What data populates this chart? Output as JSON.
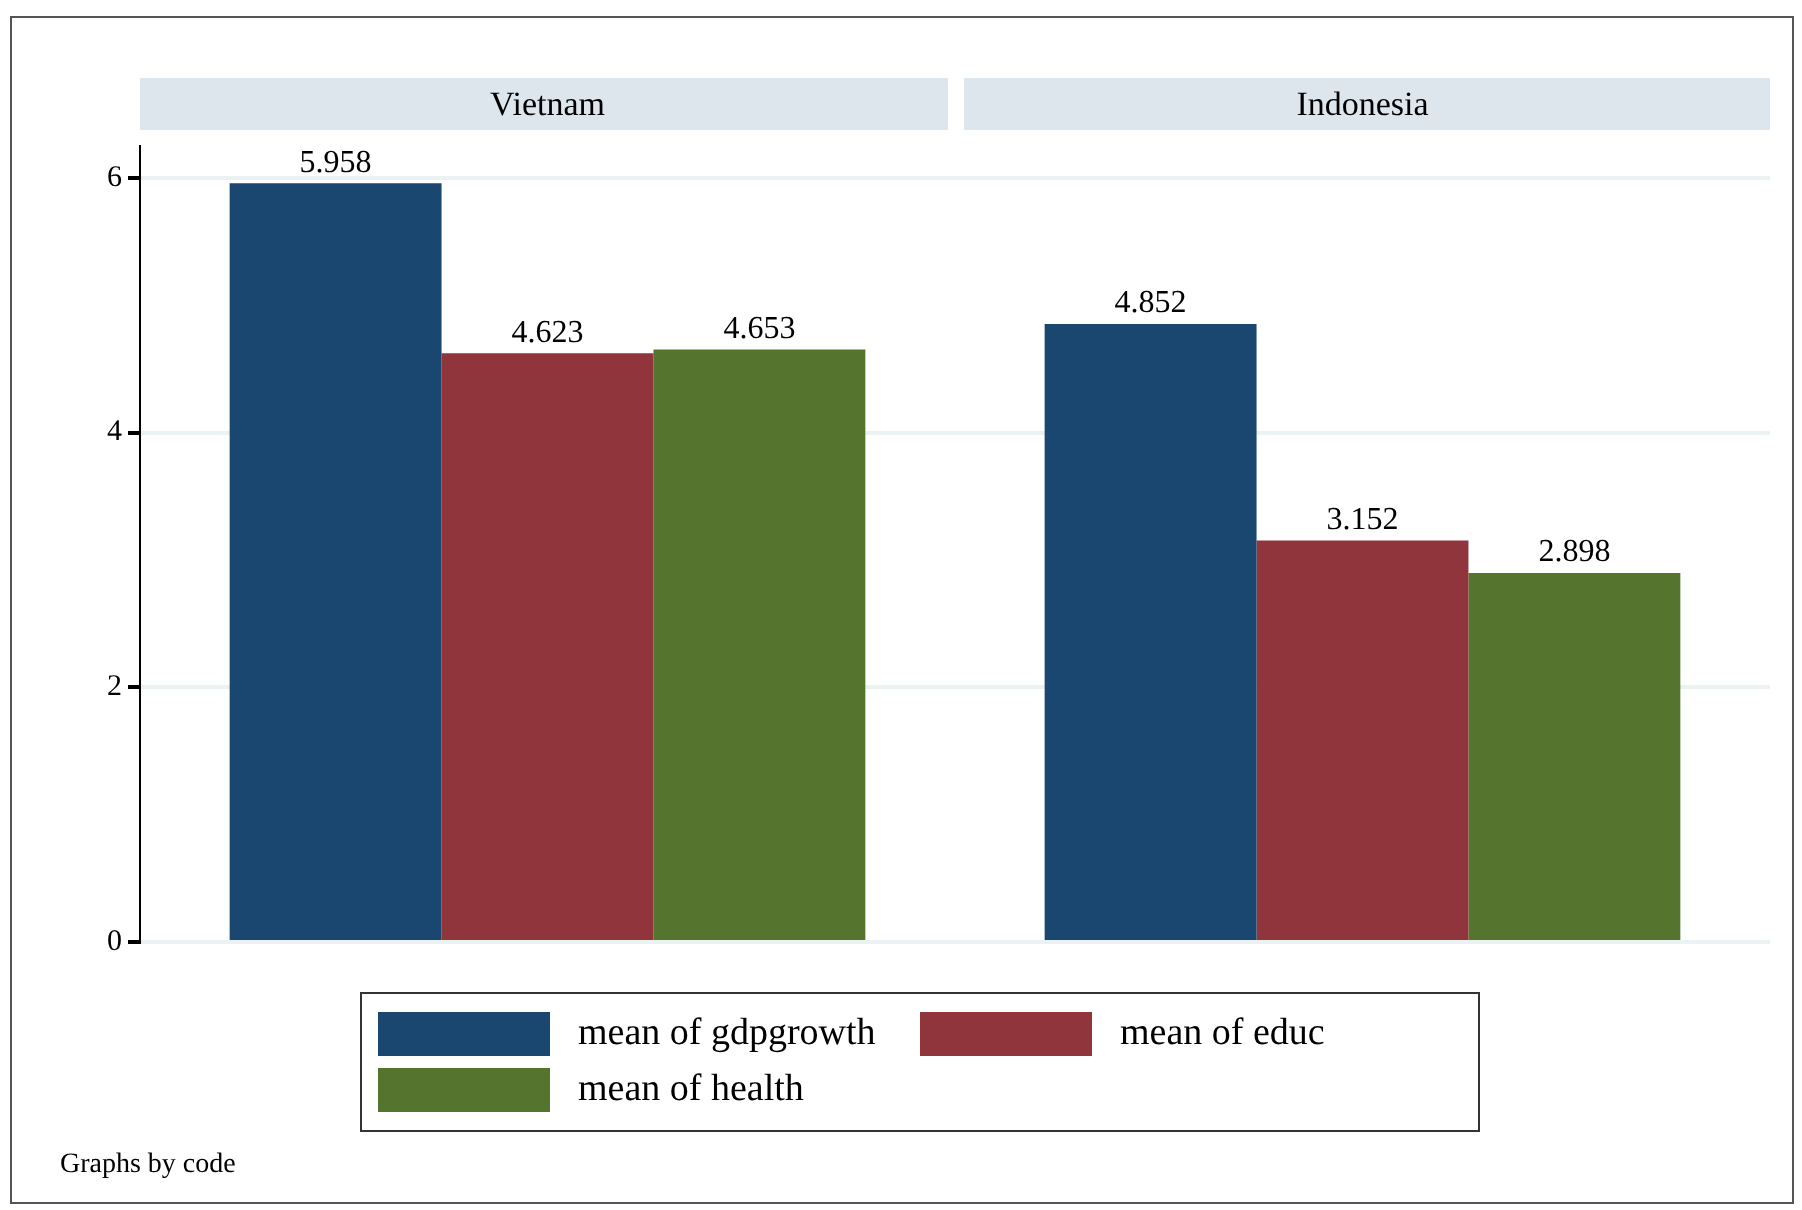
{
  "chart_data": {
    "type": "bar",
    "categories": [
      "Vietnam",
      "Indonesia"
    ],
    "series": [
      {
        "name": "mean of gdpgrowth",
        "color": "#1a476f",
        "values": [
          5.958,
          4.852
        ]
      },
      {
        "name": "mean of educ",
        "color": "#90353b",
        "values": [
          4.623,
          3.152
        ]
      },
      {
        "name": "mean of health",
        "color": "#55752f",
        "values": [
          4.653,
          2.898
        ]
      }
    ],
    "ylim": [
      0,
      6.25
    ],
    "yticks": [
      0,
      2,
      4,
      6
    ],
    "grid": "y",
    "data_labels": true,
    "legend": "bottom",
    "annotations": [
      "Graphs by code"
    ]
  }
}
